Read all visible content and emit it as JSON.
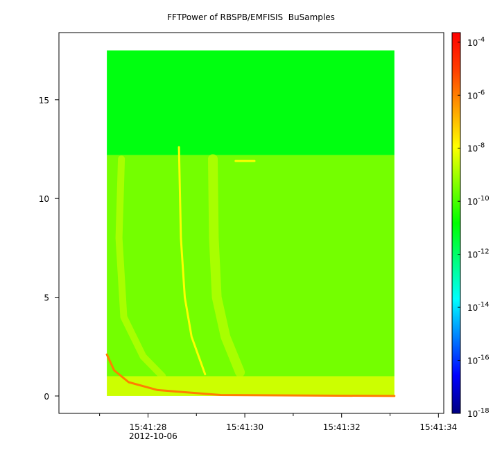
{
  "chart_data": {
    "type": "spectrogram",
    "title": "FFTPower of RBSPB/EMFISIS  BuSamples",
    "x_sublabel": "2012-10-06",
    "xlim": [
      26.16,
      34.11
    ],
    "xticks": [
      {
        "value": 28,
        "label": "15:41:28"
      },
      {
        "value": 30,
        "label": "15:41:30"
      },
      {
        "value": 32,
        "label": "15:41:32"
      },
      {
        "value": 34,
        "label": "15:41:34"
      }
    ],
    "xminorticks": [
      27,
      29,
      31,
      33
    ],
    "ylim": [
      -0.88,
      18.4
    ],
    "yticks": [
      0,
      5,
      10,
      15
    ],
    "zlim": [
      1e-18,
      0.00023
    ],
    "zscale": "log",
    "zticks": [
      {
        "value": 0.0001,
        "base": "10",
        "exponent": "-4"
      },
      {
        "value": 1e-06,
        "base": "10",
        "exponent": "-6"
      },
      {
        "value": 1e-08,
        "base": "10",
        "exponent": "-8"
      },
      {
        "value": 1e-10,
        "base": "10",
        "exponent": "-10"
      },
      {
        "value": 1e-12,
        "base": "10",
        "exponent": "-12"
      },
      {
        "value": 1e-14,
        "base": "10",
        "exponent": "-14"
      },
      {
        "value": 1e-16,
        "base": "10",
        "exponent": "-16"
      },
      {
        "value": 1e-18,
        "base": "10",
        "exponent": "-18"
      }
    ],
    "colormap": [
      "#000080",
      "#0000ff",
      "#0080ff",
      "#00ffff",
      "#00ff80",
      "#00ff00",
      "#80ff00",
      "#ffff00",
      "#ffa000",
      "#ff4000",
      "#ff0000"
    ],
    "image": {
      "xlim": [
        27.15,
        33.09
      ],
      "regions": [
        {
          "y": [
            12.2,
            17.5
          ],
          "power": 1e-11
        },
        {
          "y": [
            1,
            12.2
          ],
          "power": 3e-10
        },
        {
          "y": [
            0,
            1
          ],
          "power": 3e-09
        }
      ],
      "traces": [
        {
          "power": 3e-09,
          "width": 10,
          "points": [
            [
              27.45,
              12
            ],
            [
              27.4,
              8
            ],
            [
              27.5,
              4
            ],
            [
              27.9,
              2
            ],
            [
              28.3,
              1
            ]
          ]
        },
        {
          "power": 3e-09,
          "width": 14,
          "points": [
            [
              29.34,
              12
            ],
            [
              29.36,
              8
            ],
            [
              29.42,
              5
            ],
            [
              29.6,
              3
            ],
            [
              29.9,
              1.2
            ]
          ]
        },
        {
          "power": 1e-08,
          "width": 3,
          "points": [
            [
              28.64,
              12.6
            ],
            [
              28.68,
              8
            ],
            [
              28.76,
              5
            ],
            [
              28.9,
              3
            ],
            [
              29.18,
              1.1
            ]
          ]
        },
        {
          "power": 1e-08,
          "width": 3,
          "points": [
            [
              29.81,
              11.9
            ],
            [
              30.2,
              11.9
            ]
          ]
        },
        {
          "power": 1e-06,
          "width": 3,
          "points": [
            [
              27.15,
              2.1
            ],
            [
              27.3,
              1.3
            ],
            [
              27.6,
              0.7
            ],
            [
              28.2,
              0.3
            ],
            [
              29.5,
              0.05
            ],
            [
              33.09,
              0
            ]
          ]
        }
      ]
    }
  }
}
